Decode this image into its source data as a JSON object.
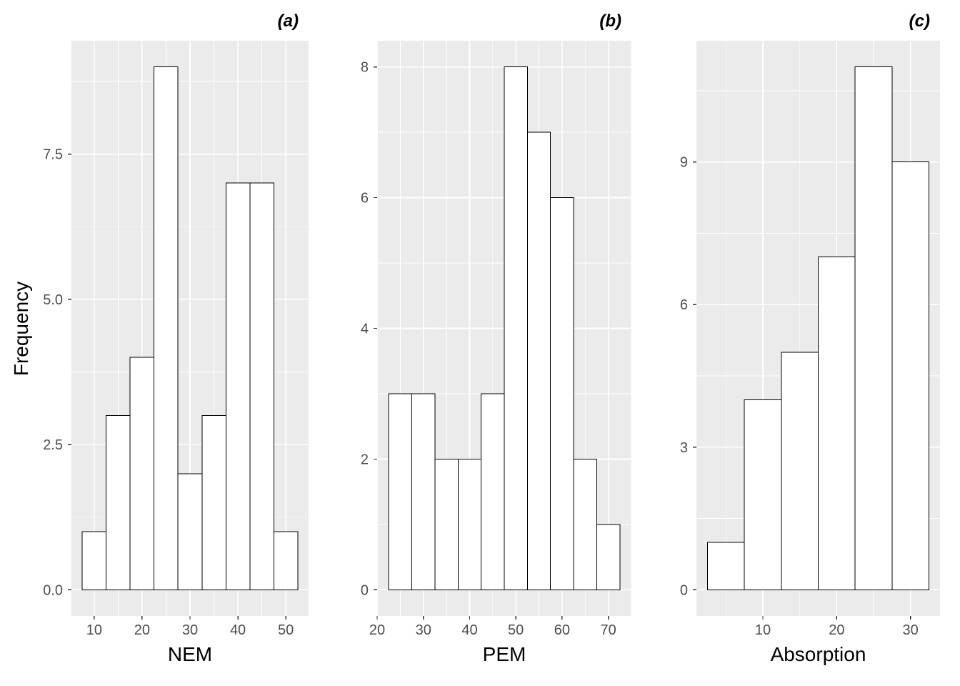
{
  "figure": {
    "y_axis_title": "Frequency",
    "background": "#FFFFFF",
    "panel_background": "#EBEBEB",
    "grid_color": "#FFFFFF",
    "bar_fill": "#FFFFFF",
    "bar_stroke": "#000000",
    "tick_mark_color": "#333333",
    "tick_label_color": "#4D4D4D",
    "axis_title_color": "#000000"
  },
  "chart_data": [
    {
      "type": "bar",
      "subtype": "histogram",
      "tag": "(a)",
      "xlabel": "NEM",
      "ylabel": "Frequency",
      "bin_edges": [
        7.5,
        12.5,
        17.5,
        22.5,
        27.5,
        32.5,
        37.5,
        42.5,
        47.5,
        52.5
      ],
      "counts": [
        1,
        3,
        4,
        9,
        2,
        3,
        7,
        7,
        1
      ],
      "x_ticks": [
        10,
        20,
        30,
        40,
        50
      ],
      "x_tick_labels": [
        "10",
        "20",
        "30",
        "40",
        "50"
      ],
      "y_ticks": [
        0,
        2.5,
        5,
        7.5
      ],
      "y_tick_labels": [
        "0.0",
        "2.5",
        "5.0",
        "7.5"
      ],
      "xlim": [
        5.25,
        54.75
      ],
      "ylim": [
        -0.45,
        9.45
      ],
      "grid": true,
      "legend": "none"
    },
    {
      "type": "bar",
      "subtype": "histogram",
      "tag": "(b)",
      "xlabel": "PEM",
      "ylabel": "Frequency",
      "bin_edges": [
        22.5,
        27.5,
        32.5,
        37.5,
        42.5,
        47.5,
        52.5,
        57.5,
        62.5,
        67.5,
        72.5
      ],
      "counts": [
        3,
        3,
        2,
        2,
        3,
        8,
        7,
        6,
        2,
        1
      ],
      "x_ticks": [
        20,
        30,
        40,
        50,
        60,
        70
      ],
      "x_tick_labels": [
        "20",
        "30",
        "40",
        "50",
        "60",
        "70"
      ],
      "y_ticks": [
        0,
        2,
        4,
        6,
        8
      ],
      "y_tick_labels": [
        "0",
        "2",
        "4",
        "6",
        "8"
      ],
      "xlim": [
        20,
        75
      ],
      "ylim": [
        -0.4,
        8.4
      ],
      "grid": true,
      "legend": "none"
    },
    {
      "type": "bar",
      "subtype": "histogram",
      "tag": "(c)",
      "xlabel": "Absorption",
      "ylabel": "Frequency",
      "bin_edges": [
        2.5,
        7.5,
        12.5,
        17.5,
        22.5,
        27.5,
        32.5
      ],
      "counts": [
        1,
        4,
        5,
        7,
        11,
        9
      ],
      "x_ticks": [
        10,
        20,
        30
      ],
      "x_tick_labels": [
        "10",
        "20",
        "30"
      ],
      "y_ticks": [
        0,
        3,
        6,
        9
      ],
      "y_tick_labels": [
        "0",
        "3",
        "6",
        "9"
      ],
      "xlim": [
        1,
        34
      ],
      "ylim": [
        -0.55,
        11.55
      ],
      "grid": true,
      "legend": "none"
    }
  ]
}
